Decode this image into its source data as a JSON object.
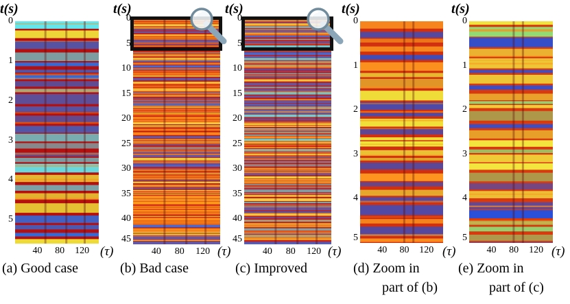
{
  "y_axis_label": "t(s)",
  "x_axis_label": "(τ)",
  "panels": [
    {
      "id": "a",
      "caption": [
        "(a) Good case"
      ],
      "y_ticks": [
        "0",
        "1",
        "2",
        "3",
        "4",
        "5"
      ],
      "x_ticks": [
        "40",
        "80",
        "120"
      ],
      "t_range": [
        0,
        5.6
      ],
      "tau_range": [
        0,
        150
      ],
      "highlight": null,
      "colors": {
        "background": "#b41010",
        "bands": [
          "#f0e23a",
          "#63e6ec",
          "#2f6fe0"
        ]
      }
    },
    {
      "id": "b",
      "caption": [
        "(b) Bad case"
      ],
      "y_ticks": [
        "0",
        "5",
        "10",
        "15",
        "20",
        "25",
        "30",
        "35",
        "40",
        "45"
      ],
      "x_ticks": [
        "40",
        "80",
        "120"
      ],
      "t_range": [
        0,
        45
      ],
      "tau_range": [
        0,
        150
      ],
      "highlight": {
        "t_start": 0,
        "t_end": 5,
        "icon": "magnifier-icon"
      },
      "colors": {
        "background": "#c81a0f",
        "bands": [
          "#f3e648",
          "#ff9a1a",
          "#3a6fe0"
        ]
      }
    },
    {
      "id": "c",
      "caption": [
        "(c) Improved"
      ],
      "y_ticks": [
        "0",
        "5",
        "10",
        "15",
        "20",
        "25",
        "30",
        "35",
        "40",
        "45"
      ],
      "x_ticks": [
        "40",
        "80",
        "120"
      ],
      "t_range": [
        0,
        45
      ],
      "tau_range": [
        0,
        150
      ],
      "highlight": {
        "t_start": 0,
        "t_end": 5,
        "icon": "magnifier-icon"
      },
      "colors": {
        "background": "#c81a0f",
        "bands": [
          "#f3e648",
          "#61dbe8",
          "#3a6fe0"
        ]
      }
    },
    {
      "id": "d",
      "caption": [
        "(d) Zoom in",
        "part of (b)"
      ],
      "y_ticks": [
        "0",
        "1",
        "2",
        "3",
        "4",
        "5"
      ],
      "x_ticks": [
        "40",
        "80",
        "120"
      ],
      "t_range": [
        0,
        5
      ],
      "tau_range": [
        0,
        150
      ],
      "highlight": null,
      "colors": {
        "background": "#d0300f",
        "bands": [
          "#f1ea3c",
          "#ff9b20",
          "#2552d8"
        ]
      }
    },
    {
      "id": "e",
      "caption": [
        "(e) Zoom in",
        "part of (c)"
      ],
      "y_ticks": [
        "0",
        "1",
        "2",
        "3",
        "4",
        "5"
      ],
      "x_ticks": [
        "40",
        "80",
        "120"
      ],
      "t_range": [
        0,
        5
      ],
      "tau_range": [
        0,
        150
      ],
      "highlight": null,
      "colors": {
        "background": "#d83a10",
        "bands": [
          "#f4ec40",
          "#8ee37a",
          "#2650dc"
        ]
      }
    }
  ]
}
